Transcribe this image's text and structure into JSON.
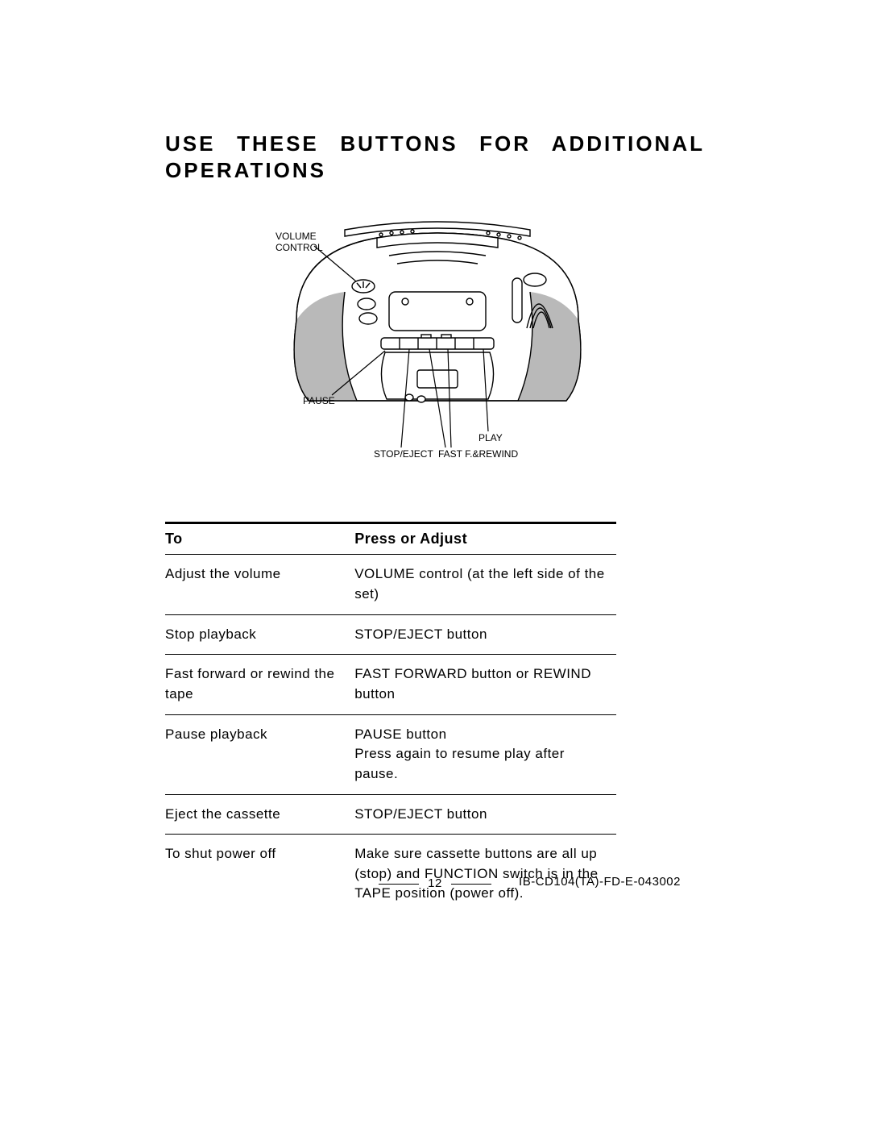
{
  "heading": {
    "line1": "USE THESE BUTTONS FOR ADDITIONAL",
    "line2": "OPERATIONS"
  },
  "diagram": {
    "labels": {
      "volume_control_l1": "VOLUME",
      "volume_control_l2": "CONTROL",
      "pause": "PAUSE",
      "play": "PLAY",
      "stop_eject": "STOP/EJECT",
      "fast_f_rewind": "FAST F.&REWIND"
    },
    "svg": {
      "stroke": "#000000",
      "fill_shadow": "#b9b9b9",
      "fill_white": "#ffffff",
      "label_fontsize": 12,
      "stroke_width": 1.4
    }
  },
  "table": {
    "headers": {
      "col1": "To",
      "col2": "Press or Adjust"
    },
    "rows": [
      {
        "to": "Adjust the volume",
        "action": "VOLUME control (at the left side of the set)"
      },
      {
        "to": "Stop playback",
        "action": "STOP/EJECT button"
      },
      {
        "to": "Fast forward or rewind the tape",
        "action": "FAST  FORWARD  button  or REWIND button"
      },
      {
        "to": "Pause playback",
        "action": "PAUSE button\nPress again to resume play after pause."
      },
      {
        "to": "Eject the cassette",
        "action": "STOP/EJECT button"
      },
      {
        "to": "To shut power off",
        "action": "Make sure cassette buttons are all up (stop) and FUNCTION switch is in the TAPE position (power off)."
      }
    ]
  },
  "footer": {
    "page_number": "12",
    "doc_id": "IB-CD104(TA)-FD-E-043002"
  }
}
